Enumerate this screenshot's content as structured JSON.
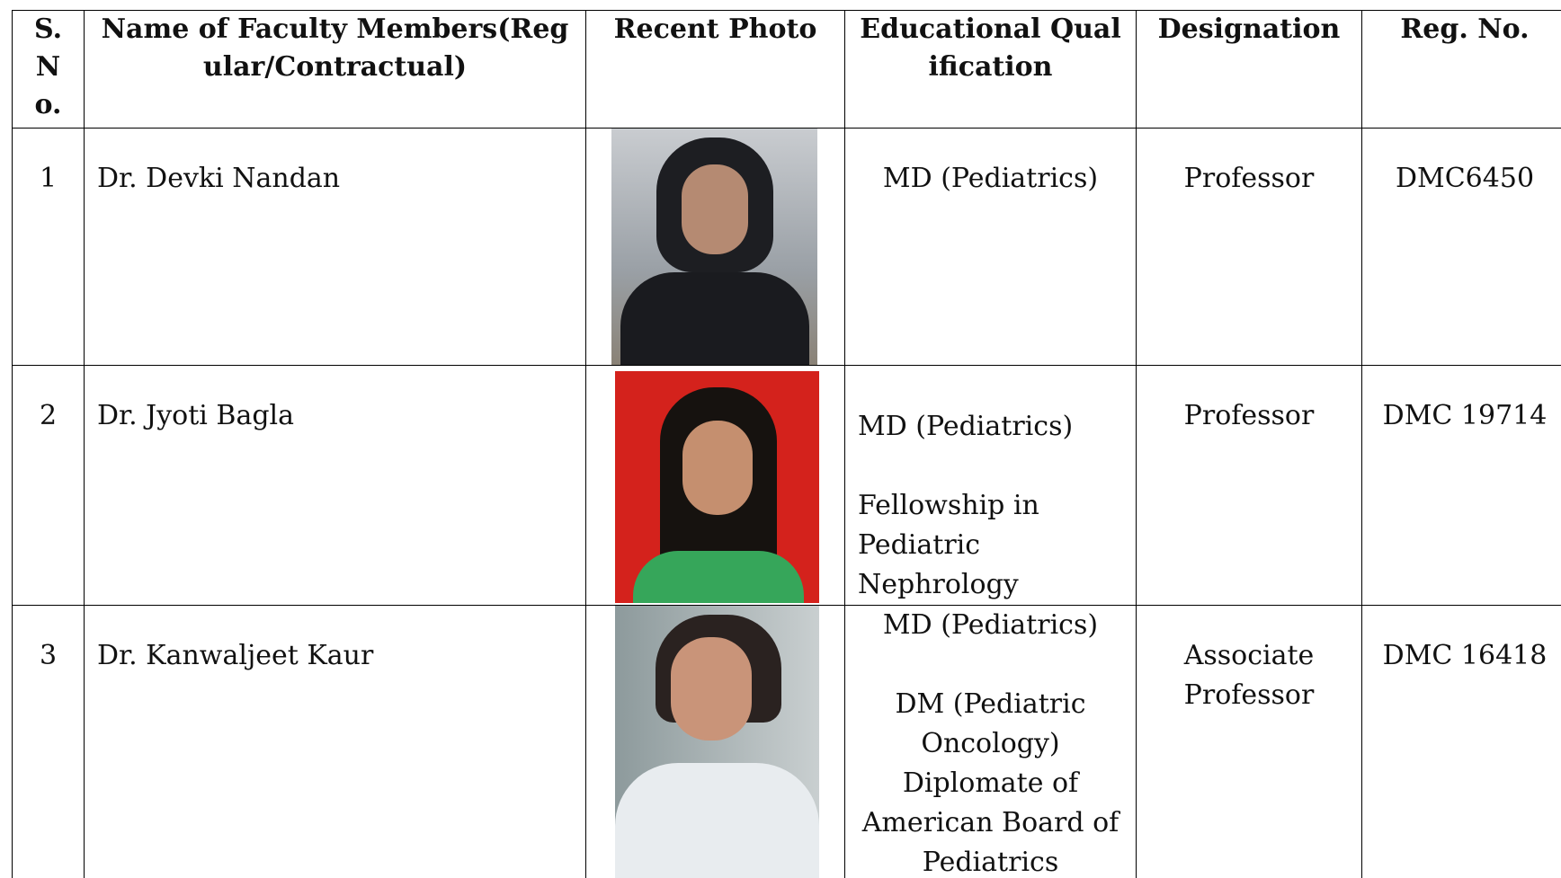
{
  "table": {
    "headers": [
      "S. No.",
      "Name of Faculty Members(Regular/Contractual)",
      "Recent Photo",
      "Educational Qualification",
      "Designation",
      "Reg. No."
    ],
    "rows": [
      {
        "sno": "1",
        "name": "Dr. Devki Nandan",
        "qualification": [
          "MD (Pediatrics)"
        ],
        "designation": "Professor",
        "reg_no": "DMC6450"
      },
      {
        "sno": "2",
        "name": "Dr. Jyoti Bagla",
        "qualification": [
          "MD (Pediatrics)",
          "Fellowship in Pediatric Nephrology"
        ],
        "designation": "Professor",
        "reg_no": "DMC 19714"
      },
      {
        "sno": "3",
        "name": "Dr. Kanwaljeet Kaur",
        "qualification": [
          "MD (Pediatrics)",
          "DM (Pediatric Oncology) Diplomate of American Board of Pediatrics"
        ],
        "designation": "Associate Professor",
        "reg_no": "DMC 16418"
      }
    ]
  }
}
